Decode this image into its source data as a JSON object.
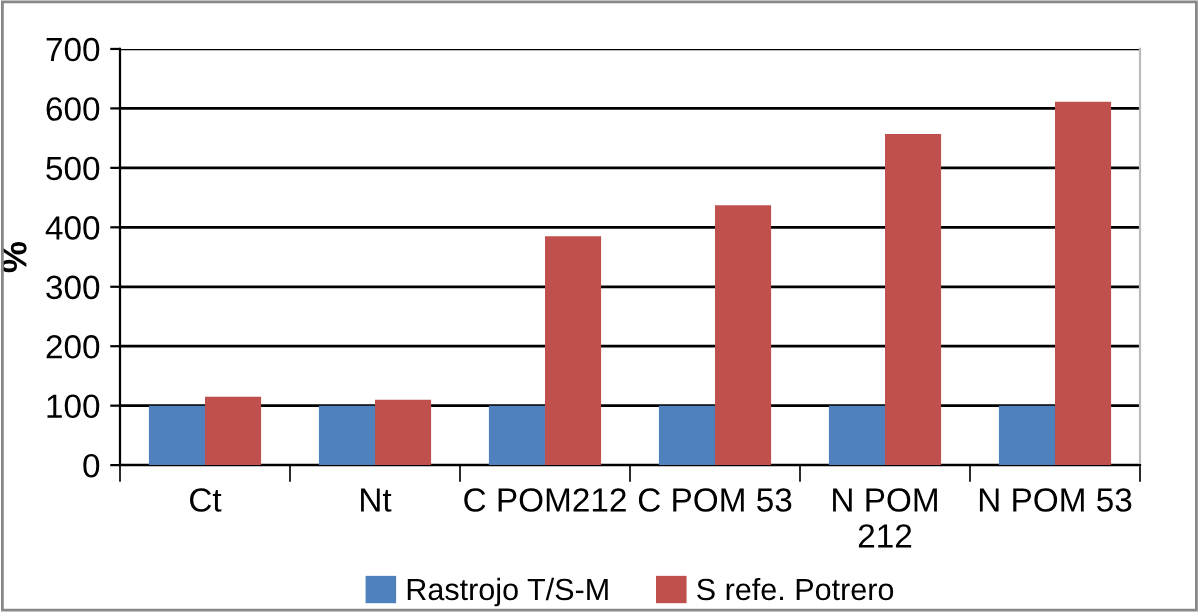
{
  "chart_data": {
    "type": "bar",
    "ylabel": "%",
    "categories": [
      "Ct",
      "Nt",
      "C POM212",
      "C POM 53",
      "N POM\n212",
      "N POM 53"
    ],
    "series": [
      {
        "name": "Rastrojo T/S-M",
        "color": "#4f81bd",
        "values": [
          100,
          100,
          100,
          100,
          100,
          100
        ]
      },
      {
        "name": "S refe. Potrero",
        "color": "#c0504d",
        "values": [
          115,
          110,
          385,
          437,
          557,
          611
        ]
      }
    ],
    "ylim": [
      0,
      700
    ],
    "yticks": [
      0,
      100,
      200,
      300,
      400,
      500,
      600,
      700
    ],
    "grid": "y",
    "legend": "bottom"
  }
}
